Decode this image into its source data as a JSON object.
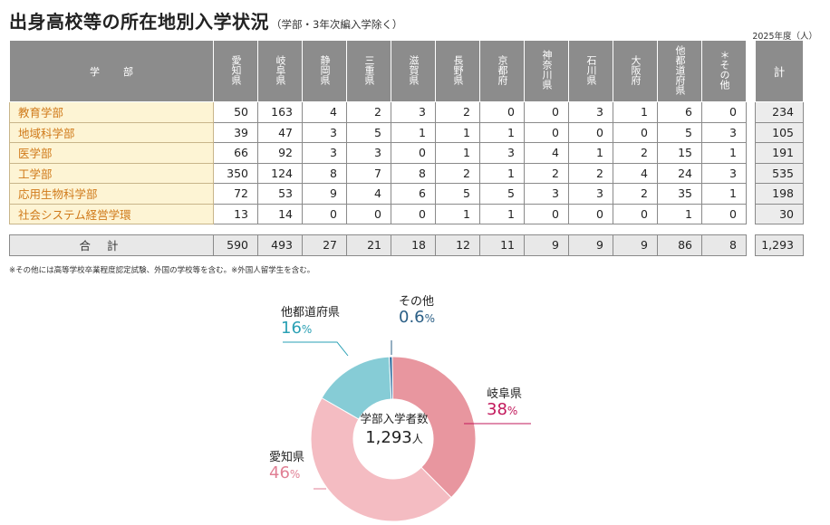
{
  "title": "出身高校等の所在地別入学状況",
  "subtitle": "（学部・3年次編入学除く）",
  "unit_note": "2025年度（人）",
  "table": {
    "dept_header": "学部",
    "prefectures": [
      "愛知県",
      "岐阜県",
      "静岡県",
      "三重県",
      "滋賀県",
      "長野県",
      "京都府",
      "神奈川県",
      "石川県",
      "大阪府",
      "他都道府県",
      "＊その他"
    ],
    "total_header": "計",
    "rows": [
      {
        "dept": "教育学部",
        "values": [
          "50",
          "163",
          "4",
          "2",
          "3",
          "2",
          "0",
          "0",
          "3",
          "1",
          "6",
          "0"
        ],
        "total": "234"
      },
      {
        "dept": "地域科学部",
        "values": [
          "39",
          "47",
          "3",
          "5",
          "1",
          "1",
          "1",
          "0",
          "0",
          "0",
          "5",
          "3"
        ],
        "total": "105"
      },
      {
        "dept": "医学部",
        "values": [
          "66",
          "92",
          "3",
          "3",
          "0",
          "1",
          "3",
          "4",
          "1",
          "2",
          "15",
          "1"
        ],
        "total": "191"
      },
      {
        "dept": "工学部",
        "values": [
          "350",
          "124",
          "8",
          "7",
          "8",
          "2",
          "1",
          "2",
          "2",
          "4",
          "24",
          "3"
        ],
        "total": "535"
      },
      {
        "dept": "応用生物科学部",
        "values": [
          "72",
          "53",
          "9",
          "4",
          "6",
          "5",
          "5",
          "3",
          "3",
          "2",
          "35",
          "1"
        ],
        "total": "198"
      },
      {
        "dept": "社会システム経営学環",
        "values": [
          "13",
          "14",
          "0",
          "0",
          "0",
          "1",
          "1",
          "0",
          "0",
          "0",
          "1",
          "0"
        ],
        "total": "30"
      }
    ],
    "sum_label": "合計",
    "sum_values": [
      "590",
      "493",
      "27",
      "21",
      "18",
      "12",
      "11",
      "9",
      "9",
      "9",
      "86",
      "8"
    ],
    "sum_total": "1,293"
  },
  "note": "※その他には高等学校卒業程度認定試験、外国の学校等を含む。※外国人留学生を含む。",
  "chart_data": {
    "type": "pie",
    "style": "donut",
    "center_label": "学部入学者数",
    "center_value": "1,293",
    "center_unit": "人",
    "slices": [
      {
        "name": "岐阜県",
        "value": 38,
        "pct_text": "38",
        "color": "#e8969f",
        "label_color": "#c2185b"
      },
      {
        "name": "愛知県",
        "value": 46,
        "pct_text": "46",
        "color": "#f4bcc2",
        "label_color": "#e07f94"
      },
      {
        "name": "他都道府県",
        "value": 16,
        "pct_text": "16",
        "color": "#86ccd6",
        "label_color": "#2aa0b4"
      },
      {
        "name": "その他",
        "value": 0.6,
        "pct_text": "0.6",
        "color": "#2f6fa0",
        "label_color": "#2b5f86"
      }
    ],
    "pct_unit": "%"
  }
}
